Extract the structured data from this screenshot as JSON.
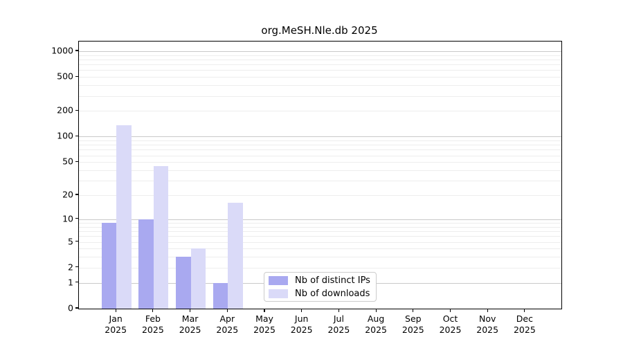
{
  "title": "org.MeSH.Nle.db 2025",
  "chart_data": {
    "type": "bar",
    "title": "org.MeSH.Nle.db 2025",
    "year": "2025",
    "categories": [
      {
        "month": "Jan",
        "year": "2025"
      },
      {
        "month": "Feb",
        "year": "2025"
      },
      {
        "month": "Mar",
        "year": "2025"
      },
      {
        "month": "Apr",
        "year": "2025"
      },
      {
        "month": "May",
        "year": "2025"
      },
      {
        "month": "Jun",
        "year": "2025"
      },
      {
        "month": "Jul",
        "year": "2025"
      },
      {
        "month": "Aug",
        "year": "2025"
      },
      {
        "month": "Sep",
        "year": "2025"
      },
      {
        "month": "Oct",
        "year": "2025"
      },
      {
        "month": "Nov",
        "year": "2025"
      },
      {
        "month": "Dec",
        "year": "2025"
      }
    ],
    "series": [
      {
        "name": "Nb of distinct IPs",
        "color": "#a9a9f0",
        "values": [
          9,
          10,
          3,
          1,
          0,
          0,
          0,
          0,
          0,
          0,
          0,
          0
        ]
      },
      {
        "name": "Nb of downloads",
        "color": "#dadaf8",
        "values": [
          135,
          45,
          4,
          16,
          0,
          0,
          0,
          0,
          0,
          0,
          0,
          0
        ]
      }
    ],
    "xlabel": "",
    "ylabel": "",
    "y_scale": "log1p",
    "y_ticks": [
      0,
      1,
      2,
      5,
      10,
      20,
      50,
      100,
      200,
      500,
      1000
    ],
    "y_major_gridlines": [
      1,
      10,
      100,
      1000
    ],
    "ylim": [
      0,
      1230
    ],
    "grid": true,
    "legend_position": "lower center",
    "colors": {
      "major_grid": "#c9c9c9",
      "minor_grid": "#ededed",
      "axis": "#000000",
      "background": "#ffffff"
    }
  }
}
